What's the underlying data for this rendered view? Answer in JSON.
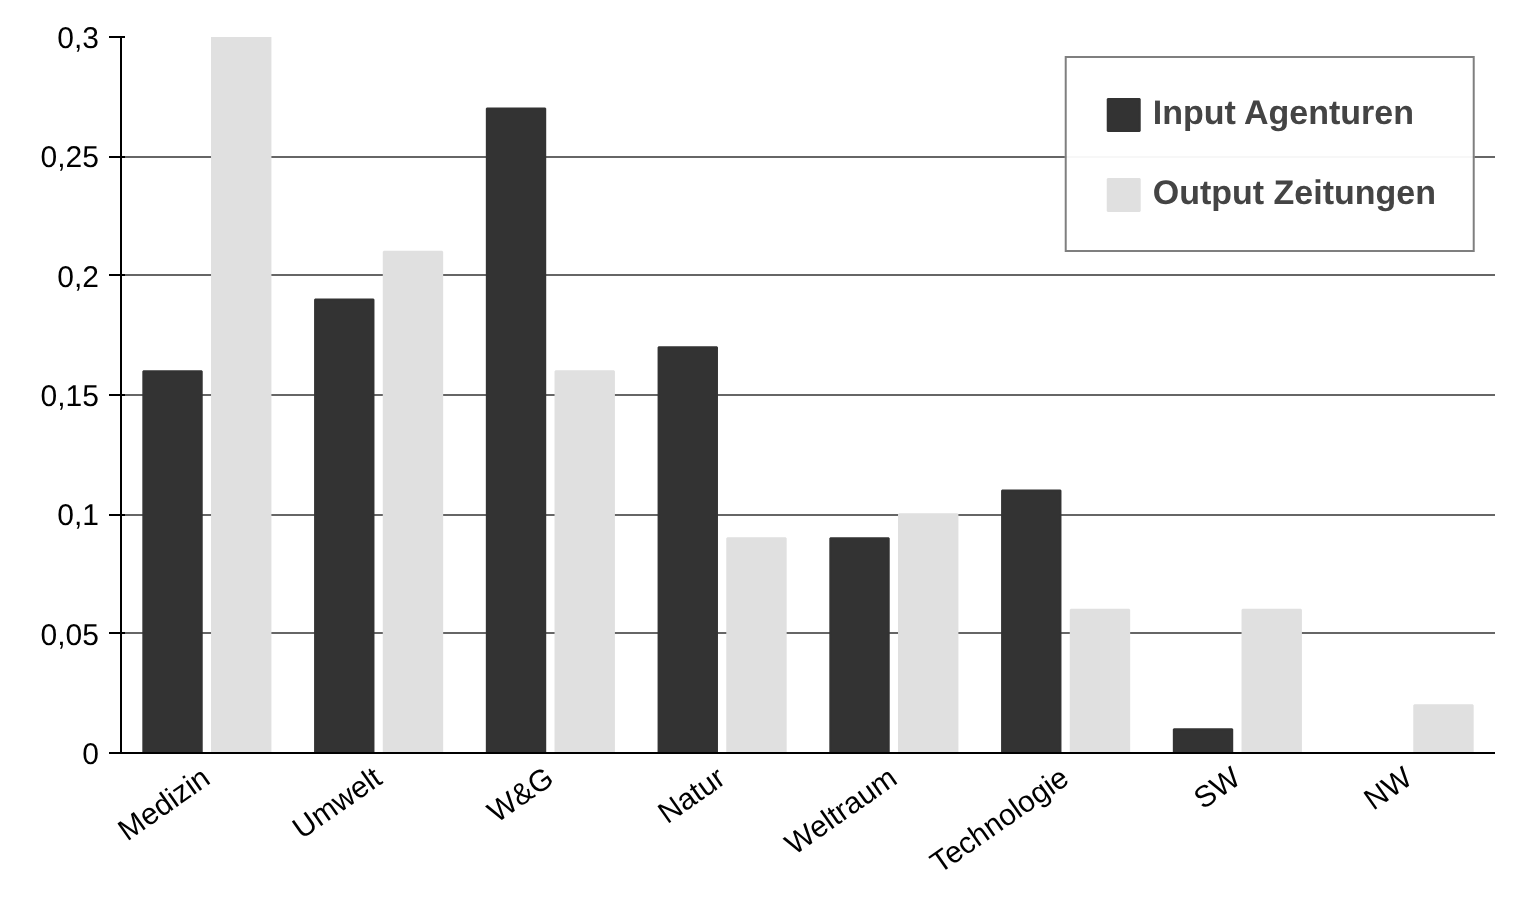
{
  "chart_data": {
    "type": "bar",
    "categories": [
      "Medizin",
      "Umwelt",
      "W&G",
      "Natur",
      "Weltraum",
      "Technologie",
      "SW",
      "NW"
    ],
    "series": [
      {
        "name": "Input Agenturen",
        "color": "#333333",
        "values": [
          0.16,
          0.19,
          0.27,
          0.17,
          0.09,
          0.11,
          0.01,
          0.0
        ]
      },
      {
        "name": "Output Zeitungen",
        "color": "#e0e0e0",
        "values": [
          0.3,
          0.21,
          0.16,
          0.09,
          0.1,
          0.06,
          0.06,
          0.02
        ]
      }
    ],
    "ylim": [
      0,
      0.3
    ],
    "yticks": [
      {
        "value": 0,
        "label": "0"
      },
      {
        "value": 0.05,
        "label": "0,05"
      },
      {
        "value": 0.1,
        "label": "0,1"
      },
      {
        "value": 0.15,
        "label": "0,15"
      },
      {
        "value": 0.2,
        "label": "0,2"
      },
      {
        "value": 0.25,
        "label": "0,25"
      },
      {
        "value": 0.3,
        "label": "0,3"
      }
    ],
    "grid": "y",
    "legend": "top right"
  }
}
